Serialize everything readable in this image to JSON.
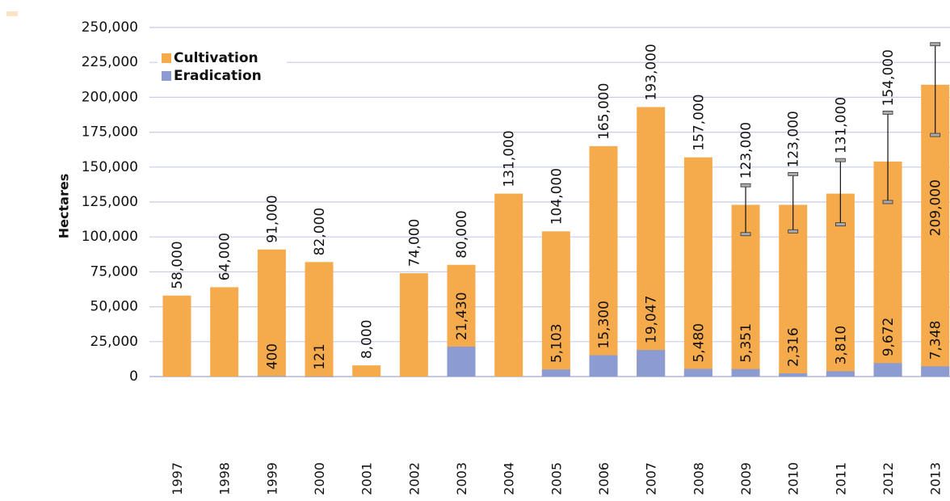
{
  "chart_data": {
    "type": "bar",
    "y_label": "Hectares",
    "categories": [
      "1997",
      "1998",
      "1999",
      "2000",
      "2001",
      "2002",
      "2003",
      "2004",
      "2005",
      "2006",
      "2007",
      "2008",
      "2009",
      "2010",
      "2011",
      "2012",
      "2013"
    ],
    "series": [
      {
        "name": "Cultivation",
        "color": "#f5aa4b",
        "values": [
          58000,
          64000,
          91000,
          82000,
          8000,
          74000,
          80000,
          131000,
          104000,
          165000,
          193000,
          157000,
          123000,
          123000,
          131000,
          154000,
          209000
        ],
        "value_labels": [
          "58,000",
          "64,000",
          "91,000",
          "82,000",
          "8,000",
          "74,000",
          "80,000",
          "131,000",
          "104,000",
          "165,000",
          "193,000",
          "157,000",
          "123,000",
          "123,000",
          "131,000",
          "154,000",
          "209,000"
        ],
        "error_low": [
          null,
          null,
          null,
          null,
          null,
          null,
          null,
          null,
          null,
          null,
          null,
          null,
          102000,
          104000,
          109000,
          125000,
          173000
        ],
        "error_high": [
          null,
          null,
          null,
          null,
          null,
          null,
          null,
          null,
          null,
          null,
          null,
          null,
          137000,
          145000,
          155000,
          189000,
          238000
        ]
      },
      {
        "name": "Eradication",
        "color": "#8c9bd2",
        "values": [
          null,
          null,
          400,
          121,
          null,
          null,
          21430,
          null,
          5103,
          15300,
          19047,
          5480,
          5351,
          2316,
          3810,
          9672,
          7348
        ],
        "value_labels": [
          null,
          null,
          "400",
          "121",
          null,
          null,
          "21,430",
          null,
          "5,103",
          "15,300",
          "19,047",
          "5,480",
          "5,351",
          "2,316",
          "3,810",
          "9,672",
          "7,348"
        ]
      }
    ],
    "ylim": [
      0,
      250000
    ],
    "yticks": [
      0,
      {
        "value": 25000,
        "label": "25,000"
      },
      {
        "value": 50000,
        "label": "50,000"
      },
      {
        "value": 75000,
        "label": "75,000"
      },
      {
        "value": 100000,
        "label": "100,000"
      },
      {
        "value": 125000,
        "label": "125,000"
      },
      {
        "value": 150000,
        "label": "150,000"
      },
      {
        "value": 175000,
        "label": "175,000"
      },
      {
        "value": 200000,
        "label": "200,000"
      },
      {
        "value": 225000,
        "label": "225,000"
      },
      {
        "value": 250000,
        "label": "250,000"
      }
    ],
    "grid": true,
    "legend": "upper left"
  }
}
